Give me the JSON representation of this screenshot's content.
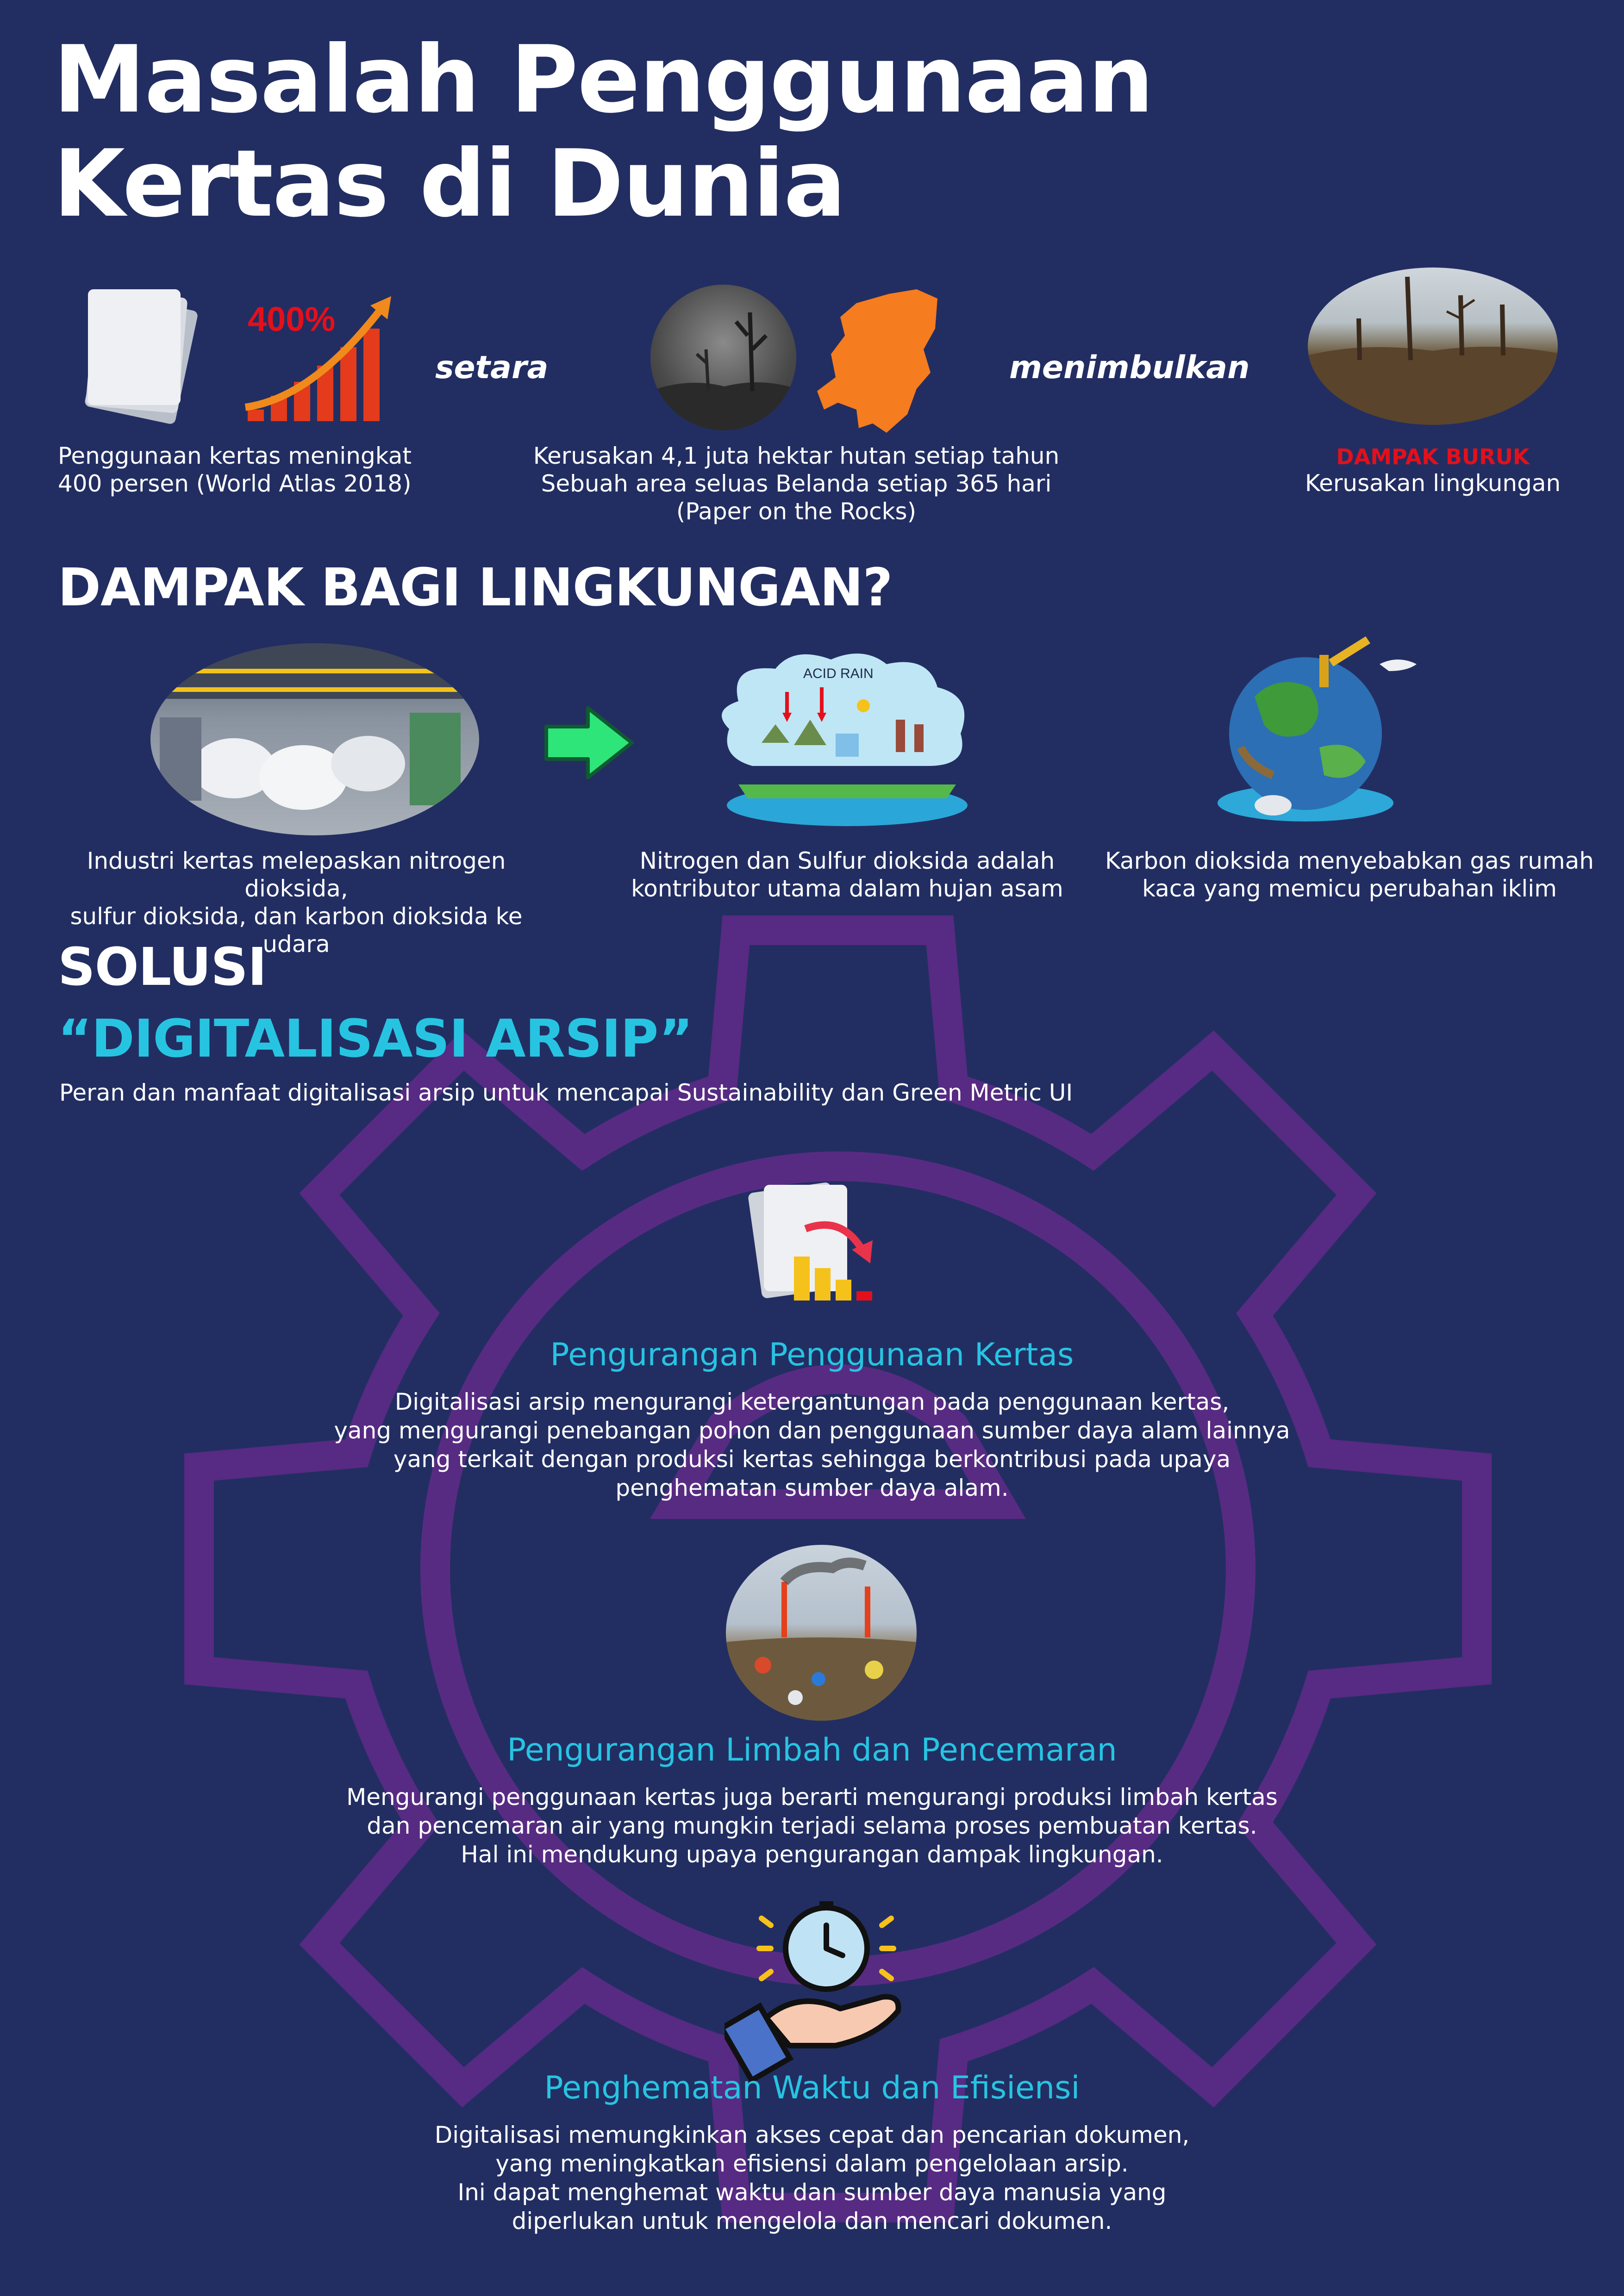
{
  "title_line1": "Masalah Penggunaan",
  "title_line2": "Kertas di Dunia",
  "intro": {
    "badge_400": "400%",
    "connector_1": "setara",
    "connector_2": "menimbulkan",
    "caption_1": [
      "Penggunaan kertas meningkat",
      "400 persen (World Atlas 2018)"
    ],
    "caption_2": [
      "Kerusakan 4,1 juta hektar hutan setiap tahun",
      "Sebuah area seluas Belanda setiap 365 hari",
      "(Paper on the Rocks)"
    ],
    "caption_3_alert": "DAMPAK BURUK",
    "caption_3": "Kerusakan lingkungan"
  },
  "impact": {
    "heading": "DAMPAK BAGI LINGKUNGAN?",
    "acid_rain_label": "ACID RAIN",
    "captions": [
      [
        "Industri kertas melepaskan nitrogen dioksida,",
        "sulfur dioksida, dan karbon dioksida ke udara"
      ],
      [
        "Nitrogen dan Sulfur dioksida adalah",
        "kontributor utama dalam hujan asam"
      ],
      [
        "Karbon dioksida menyebabkan gas rumah",
        "kaca yang memicu perubahan iklim"
      ]
    ]
  },
  "solution": {
    "heading": "SOLUSI",
    "subheading": "“DIGITALISASI ARSIP”",
    "description": "Peran dan manfaat digitalisasi arsip untuk mencapai Sustainability dan Green Metric UI",
    "items": [
      {
        "title": "Pengurangan Penggunaan Kertas",
        "lines": [
          "Digitalisasi arsip mengurangi ketergantungan pada penggunaan kertas,",
          "yang mengurangi penebangan pohon dan penggunaan sumber daya alam lainnya",
          "yang terkait dengan produksi kertas sehingga berkontribusi pada upaya",
          "penghematan sumber daya alam."
        ]
      },
      {
        "title": "Pengurangan Limbah dan Pencemaran",
        "lines": [
          "Mengurangi penggunaan kertas juga berarti mengurangi produksi limbah kertas",
          "dan pencemaran air yang mungkin terjadi selama proses pembuatan kertas.",
          "Hal ini mendukung upaya pengurangan dampak lingkungan."
        ]
      },
      {
        "title": "Penghematan Waktu dan Efisiensi",
        "lines": [
          "Digitalisasi memungkinkan akses cepat dan pencarian dokumen,",
          "yang meningkatkan efisiensi dalam pengelolaan arsip.",
          "Ini dapat menghemat waktu dan sumber daya manusia yang",
          "diperlukan untuk mengelola dan mencari dokumen."
        ]
      }
    ]
  },
  "colors": {
    "background": "#222e62",
    "accent_cyan": "#27c4e2",
    "alert_red": "#e3101b",
    "gear_watermark": "#6a2a8f",
    "arrow_green": "#2ee57a",
    "netherlands_orange": "#f57c1f"
  },
  "icons": [
    "paper-stack-icon",
    "growth-chart-icon",
    "netherlands-map-icon",
    "right-arrow-icon",
    "gear-icon",
    "paper-decline-icon",
    "clock-hand-icon"
  ]
}
